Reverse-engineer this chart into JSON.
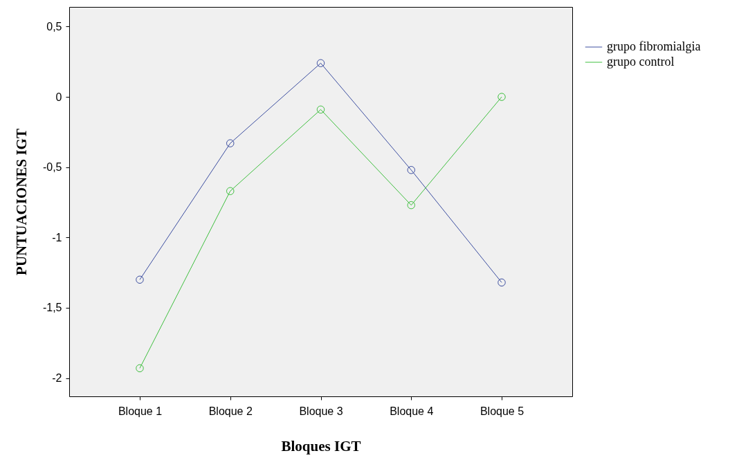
{
  "chart_data": {
    "type": "line",
    "xlabel": "Bloques IGT",
    "ylabel": "PUNTUACIONES IGT",
    "categories": [
      "Bloque 1",
      "Bloque 2",
      "Bloque 3",
      "Bloque 4",
      "Bloque 5"
    ],
    "series": [
      {
        "name": "grupo fibromialgia",
        "color": "#3c4ea0",
        "values": [
          -1.3,
          -0.33,
          0.24,
          -0.52,
          -1.32
        ]
      },
      {
        "name": "grupo control",
        "color": "#3fbf3f",
        "values": [
          -1.93,
          -0.67,
          -0.09,
          -0.77,
          0
        ]
      }
    ],
    "ylim": [
      -2.13,
      0.64
    ],
    "yticks": [
      {
        "value": -2,
        "label": "-2"
      },
      {
        "value": -1.5,
        "label": "-1,5"
      },
      {
        "value": -1,
        "label": "-1"
      },
      {
        "value": -0.5,
        "label": "-0,5"
      },
      {
        "value": 0,
        "label": "0"
      },
      {
        "value": 0.5,
        "label": "0,5"
      }
    ],
    "grid": false,
    "legend": "top right",
    "marker": "circle",
    "line_style": "solid"
  }
}
